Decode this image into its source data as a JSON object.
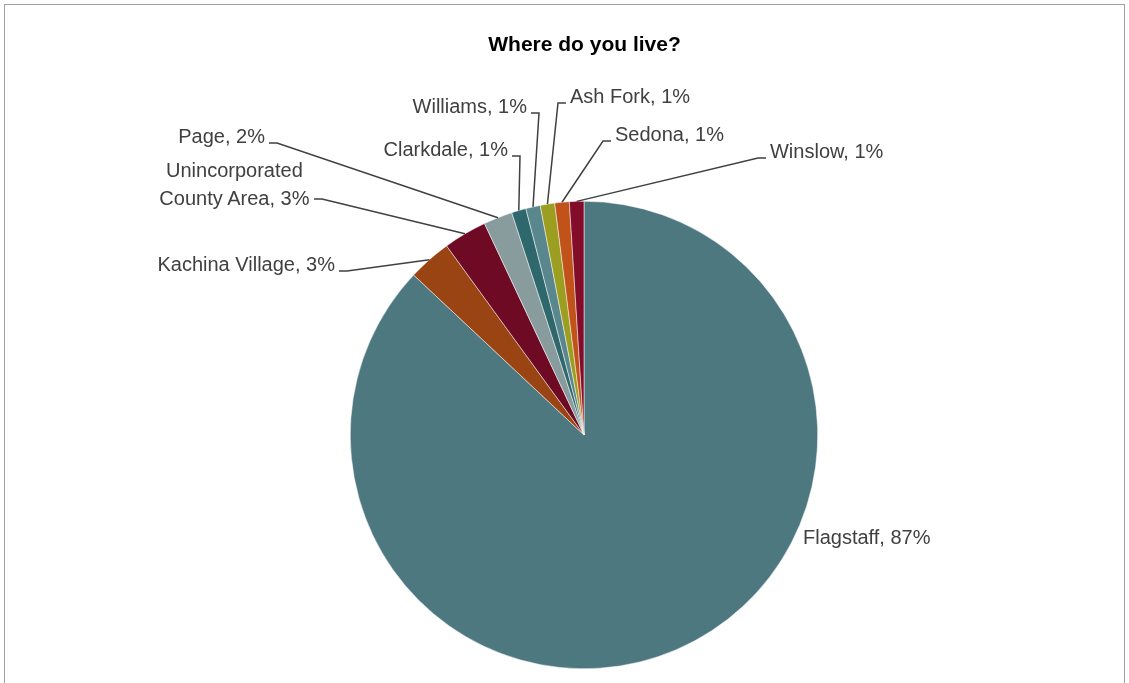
{
  "chart_data": {
    "type": "pie",
    "title": "Where do you live?",
    "categories": [
      "Flagstaff",
      "Kachina Village",
      "Unincorporated County Area",
      "Page",
      "Clarkdale",
      "Williams",
      "Ash Fork",
      "Sedona",
      "Winslow"
    ],
    "values": [
      87,
      3,
      3,
      2,
      1,
      1,
      1,
      1,
      1
    ],
    "value_labels": [
      "87%",
      "3%",
      "3%",
      "2%",
      "1%",
      "1%",
      "1%",
      "1%",
      "1%"
    ],
    "colors": [
      "#4e7880",
      "#9a4414",
      "#6e0a24",
      "#889c9e",
      "#2f686c",
      "#5a878d",
      "#9c9e22",
      "#c0521a",
      "#820c2a"
    ],
    "legend": false
  }
}
